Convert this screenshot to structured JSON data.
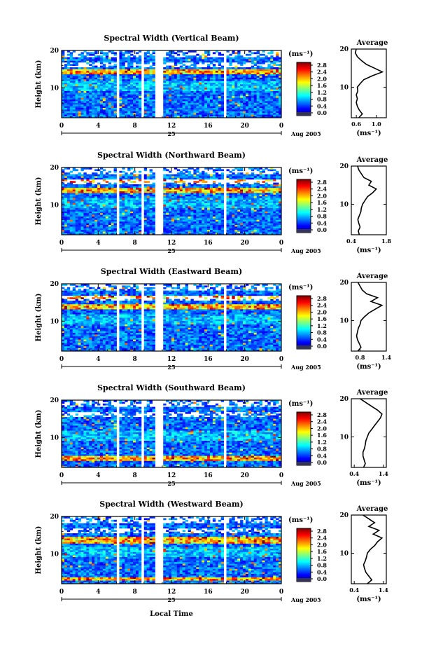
{
  "figure": {
    "x_axis_label": "Local Time",
    "date_label": "Aug 2005",
    "day_label": "25"
  },
  "chart_data": [
    {
      "type": "heatmap",
      "title": "Spectral Width (Vertical Beam)",
      "ylabel": "Height (km)",
      "ylim": [
        2,
        20
      ],
      "yticks": [
        "10",
        "20"
      ],
      "xlim": [
        0,
        24
      ],
      "xticks": [
        "0",
        "4",
        "8",
        "12",
        "16",
        "20",
        "0"
      ],
      "colorbar": {
        "unit": "(ms⁻¹)",
        "ticks": [
          "2.8",
          "2.4",
          "2.0",
          "1.6",
          "1.2",
          "0.8",
          "0.4",
          "0.0"
        ]
      },
      "data_gaps_hours": [
        [
          6.0,
          6.4
        ],
        [
          8.7,
          9.0
        ],
        [
          10.3,
          11.0
        ],
        [
          17.8,
          18.1
        ]
      ],
      "enhanced_layers_km": [
        [
          13.5,
          15.0
        ]
      ],
      "profile": {
        "title": "Average",
        "xlabel": "(ms⁻¹)",
        "xlim": [
          0.5,
          1.2
        ],
        "xticks": [
          "0.6",
          "1.0"
        ],
        "ylim": [
          2,
          20
        ],
        "yticks": [
          "10",
          "20"
        ],
        "heights": [
          2,
          3,
          4,
          5,
          6,
          7,
          8,
          9,
          10,
          11,
          12,
          13,
          14,
          15,
          16,
          17,
          18,
          19,
          20
        ],
        "values": [
          0.65,
          0.72,
          0.66,
          0.62,
          0.6,
          0.62,
          0.6,
          0.63,
          0.62,
          0.68,
          0.75,
          0.92,
          1.12,
          0.96,
          0.8,
          0.7,
          0.62,
          0.58,
          0.6
        ]
      }
    },
    {
      "type": "heatmap",
      "title": "Spectral Width (Northward Beam)",
      "ylabel": "Height (km)",
      "ylim": [
        2,
        20
      ],
      "yticks": [
        "10",
        "20"
      ],
      "xlim": [
        0,
        24
      ],
      "xticks": [
        "0",
        "4",
        "8",
        "12",
        "16",
        "20",
        "0"
      ],
      "colorbar": {
        "unit": "(ms⁻¹)",
        "ticks": [
          "2.8",
          "2.4",
          "2.0",
          "1.6",
          "1.2",
          "0.8",
          "0.4",
          "0.0"
        ]
      },
      "data_gaps_hours": [
        [
          6.0,
          6.4
        ],
        [
          8.7,
          9.0
        ],
        [
          10.3,
          11.0
        ],
        [
          17.8,
          18.1
        ]
      ],
      "enhanced_layers_km": [
        [
          13.2,
          14.5
        ],
        [
          16.0,
          17.0
        ]
      ],
      "profile": {
        "title": "Average",
        "xlabel": "(ms⁻¹)",
        "xlim": [
          0.4,
          1.8
        ],
        "xticks": [
          "0.4",
          "1.8"
        ],
        "ylim": [
          2,
          20
        ],
        "yticks": [
          "10",
          "20"
        ],
        "heights": [
          2,
          3,
          4,
          5,
          6,
          7,
          8,
          9,
          10,
          11,
          12,
          13,
          14,
          15,
          16,
          17,
          18,
          19,
          20
        ],
        "values": [
          0.72,
          0.68,
          0.75,
          0.7,
          0.66,
          0.72,
          0.78,
          0.8,
          0.85,
          0.95,
          1.05,
          1.25,
          1.4,
          1.1,
          1.2,
          0.9,
          0.8,
          0.7,
          0.65
        ]
      }
    },
    {
      "type": "heatmap",
      "title": "Spectral Width (Eastward Beam)",
      "ylabel": "Height (km)",
      "ylim": [
        2,
        20
      ],
      "yticks": [
        "10",
        "20"
      ],
      "xlim": [
        0,
        24
      ],
      "xticks": [
        "0",
        "4",
        "8",
        "12",
        "16",
        "20",
        "0"
      ],
      "colorbar": {
        "unit": "(ms⁻¹)",
        "ticks": [
          "2.8",
          "2.4",
          "2.0",
          "1.6",
          "1.2",
          "0.8",
          "0.4",
          "0.0"
        ]
      },
      "data_gaps_hours": [
        [
          6.0,
          6.4
        ],
        [
          8.7,
          9.0
        ],
        [
          10.3,
          11.0
        ],
        [
          17.8,
          18.1
        ]
      ],
      "enhanced_layers_km": [
        [
          13.2,
          14.6
        ],
        [
          16.0,
          17.0
        ]
      ],
      "profile": {
        "title": "Average",
        "xlabel": "(ms⁻¹)",
        "xlim": [
          0.6,
          1.4
        ],
        "xticks": [
          "0.8",
          "1.4"
        ],
        "ylim": [
          2,
          20
        ],
        "yticks": [
          "10",
          "20"
        ],
        "heights": [
          2,
          3,
          4,
          5,
          6,
          7,
          8,
          9,
          10,
          11,
          12,
          13,
          14,
          15,
          16,
          17,
          18,
          19,
          20
        ],
        "values": [
          0.75,
          0.82,
          0.78,
          0.74,
          0.72,
          0.74,
          0.76,
          0.8,
          0.82,
          0.9,
          1.0,
          1.15,
          1.3,
          1.05,
          1.2,
          0.95,
          0.85,
          0.8,
          0.75
        ]
      }
    },
    {
      "type": "heatmap",
      "title": "Spectral Width (Southward Beam)",
      "ylabel": "Height (km)",
      "ylim": [
        2,
        20
      ],
      "yticks": [
        "10",
        "20"
      ],
      "xlim": [
        0,
        24
      ],
      "xticks": [
        "0",
        "4",
        "8",
        "12",
        "16",
        "20",
        "0"
      ],
      "colorbar": {
        "unit": "(ms⁻¹)",
        "ticks": [
          "2.8",
          "2.4",
          "2.0",
          "1.6",
          "1.2",
          "0.8",
          "0.4",
          "0.0"
        ]
      },
      "data_gaps_hours": [
        [
          6.0,
          6.4
        ],
        [
          8.7,
          9.0
        ],
        [
          10.3,
          11.0
        ],
        [
          17.8,
          18.1
        ]
      ],
      "enhanced_layers_km": [
        [
          4.0,
          5.0
        ]
      ],
      "profile": {
        "title": "Average",
        "xlabel": "(ms⁻¹)",
        "xlim": [
          0.3,
          1.5
        ],
        "xticks": [
          "0.4",
          "1.4"
        ],
        "ylim": [
          2,
          20
        ],
        "yticks": [
          "10",
          "20"
        ],
        "heights": [
          2,
          3,
          4,
          5,
          6,
          7,
          8,
          9,
          10,
          11,
          12,
          13,
          14,
          15,
          16,
          17,
          18,
          19,
          20
        ],
        "values": [
          0.72,
          0.78,
          0.74,
          0.7,
          0.7,
          0.75,
          0.78,
          0.8,
          0.85,
          0.9,
          1.0,
          1.1,
          1.2,
          1.3,
          1.35,
          1.2,
          1.0,
          0.8,
          0.6
        ]
      }
    },
    {
      "type": "heatmap",
      "title": "Spectral Width (Westward Beam)",
      "ylabel": "Height (km)",
      "ylim": [
        2,
        20
      ],
      "yticks": [
        "10",
        "20"
      ],
      "xlim": [
        0,
        24
      ],
      "xticks": [
        "0",
        "4",
        "8",
        "12",
        "16",
        "20",
        "0"
      ],
      "colorbar": {
        "unit": "(ms⁻¹)",
        "ticks": [
          "2.8",
          "2.4",
          "2.0",
          "1.6",
          "1.2",
          "0.8",
          "0.4",
          "0.0"
        ]
      },
      "data_gaps_hours": [
        [
          6.0,
          6.4
        ],
        [
          8.7,
          9.0
        ],
        [
          10.3,
          11.0
        ],
        [
          17.8,
          18.1
        ]
      ],
      "enhanced_layers_km": [
        [
          13.0,
          14.5
        ],
        [
          3.0,
          4.0
        ]
      ],
      "profile": {
        "title": "Average",
        "xlabel": "(ms⁻¹)",
        "xlim": [
          0.3,
          1.5
        ],
        "xticks": [
          "0.4",
          "1.4"
        ],
        "ylim": [
          2,
          20
        ],
        "yticks": [
          "10",
          "20"
        ],
        "heights": [
          2,
          3,
          4,
          5,
          6,
          7,
          8,
          9,
          10,
          11,
          12,
          13,
          14,
          15,
          16,
          17,
          18,
          19,
          20
        ],
        "values": [
          0.85,
          1.0,
          0.9,
          0.8,
          0.75,
          0.72,
          0.78,
          0.82,
          0.85,
          0.95,
          1.1,
          1.2,
          1.35,
          1.05,
          1.25,
          0.9,
          1.1,
          0.9,
          0.7
        ]
      }
    }
  ]
}
